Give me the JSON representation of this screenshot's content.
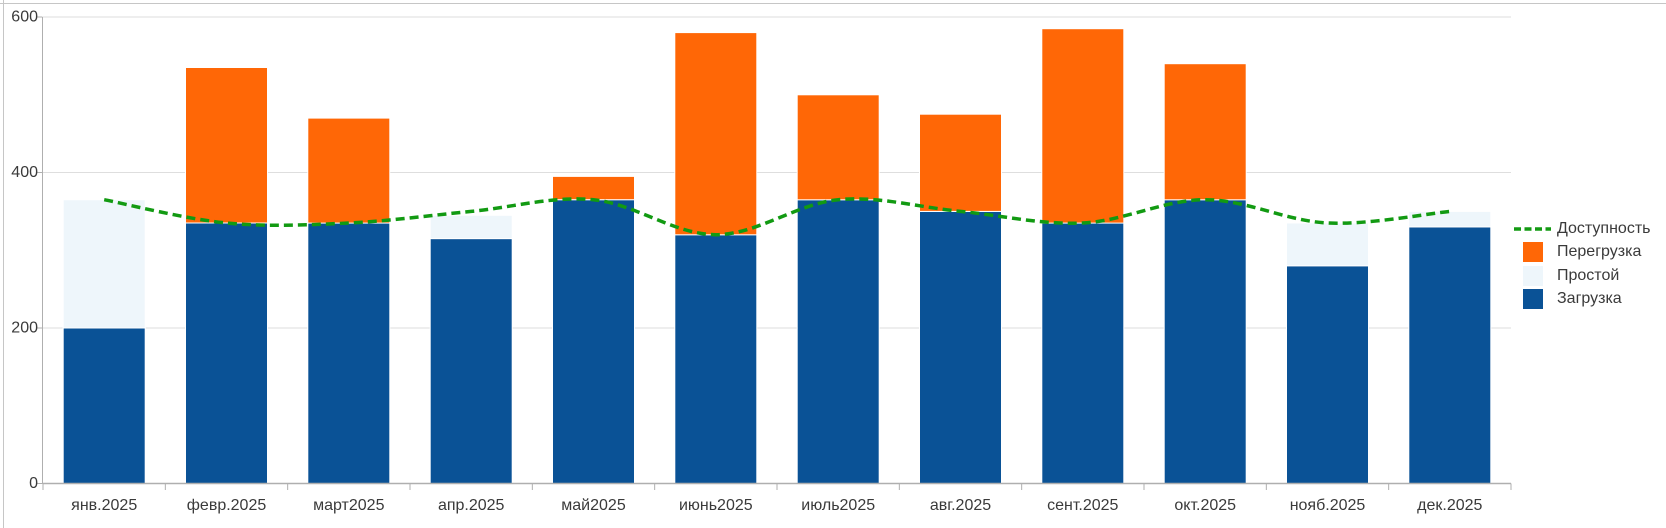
{
  "chart_data": {
    "type": "bar",
    "subtype": "stacked-columns-with-dashed-line-overlay",
    "title": "",
    "xlabel": "",
    "ylabel": "",
    "categories": [
      "янв.2025",
      "февр.2025",
      "март2025",
      "апр.2025",
      "май2025",
      "июнь2025",
      "июль2025",
      "авг.2025",
      "сент.2025",
      "окт.2025",
      "нояб.2025",
      "дек.2025"
    ],
    "series": [
      {
        "name": "Загрузка",
        "type": "bar",
        "color": "#0A5296",
        "values": [
          200,
          335,
          335,
          315,
          365,
          320,
          365,
          350,
          335,
          365,
          280,
          330
        ]
      },
      {
        "name": "Простой",
        "type": "bar",
        "color": "#EEF6FB",
        "values": [
          165,
          0,
          0,
          30,
          0,
          0,
          0,
          0,
          0,
          0,
          55,
          20
        ]
      },
      {
        "name": "Перегрузка",
        "type": "bar",
        "color": "#FF6706",
        "values": [
          0,
          200,
          135,
          0,
          30,
          260,
          135,
          125,
          250,
          175,
          0,
          0
        ]
      },
      {
        "name": "Доступность",
        "type": "dashed-line",
        "color": "#129A12",
        "values": [
          365,
          335,
          335,
          350,
          365,
          320,
          365,
          350,
          335,
          365,
          335,
          350
        ]
      }
    ],
    "stacked_totals": [
      365,
      535,
      470,
      345,
      395,
      580,
      500,
      475,
      585,
      540,
      335,
      350
    ],
    "ylim": [
      0,
      600
    ],
    "yticks": [
      0,
      200,
      400,
      600
    ],
    "grid": true,
    "legend_position": "right"
  },
  "legend": {
    "items": [
      {
        "label": "Доступность",
        "marker": "dashed-line",
        "color": "#129A12"
      },
      {
        "label": "Перегрузка",
        "marker": "square",
        "color": "#FF6706"
      },
      {
        "label": "Простой",
        "marker": "square",
        "color": "#EEF6FB"
      },
      {
        "label": "Загрузка",
        "marker": "square",
        "color": "#0A5296"
      }
    ]
  },
  "palette": {
    "gridline": "#dedede",
    "axis": "#afafaf",
    "widget_border": "#c6c6c6",
    "text": "#3a3a3a",
    "bar_outline": "#ffffff",
    "background": "#ffffff"
  }
}
